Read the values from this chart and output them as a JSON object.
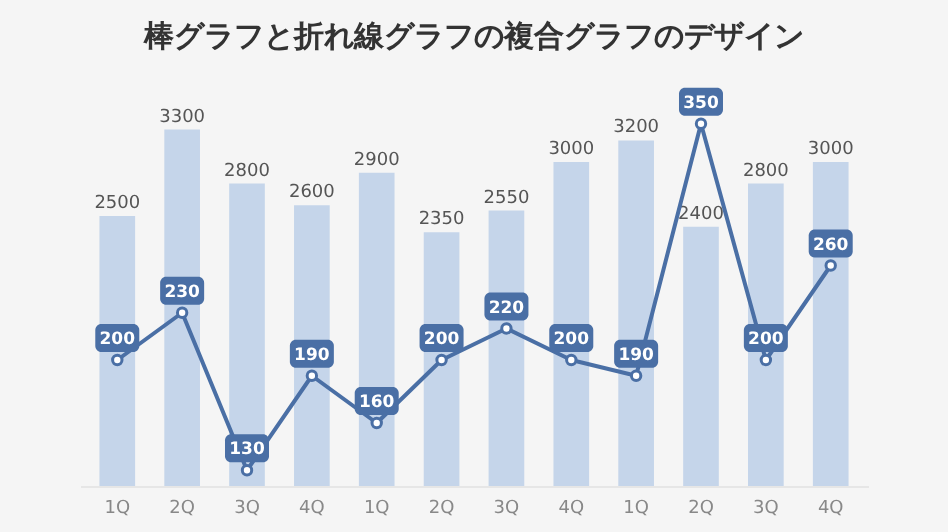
{
  "chart_data": {
    "type": "bar",
    "title": "棒グラフと折れ線グラフの複合グラフのデザイン",
    "categories": [
      "1Q",
      "2Q",
      "3Q",
      "4Q",
      "1Q",
      "2Q",
      "3Q",
      "4Q",
      "1Q",
      "2Q",
      "3Q",
      "4Q"
    ],
    "series": [
      {
        "color": "#c5d5ea",
        "values": [
          2500,
          3300,
          2800,
          2600,
          2900,
          2350,
          2550,
          3000,
          3200,
          2400,
          2800,
          3000
        ]
      },
      {
        "type": "line",
        "axis": "y2",
        "color": "#4a6fa5",
        "marker": "circle",
        "values": [
          200,
          230,
          130,
          190,
          160,
          200,
          220,
          200,
          190,
          350,
          200,
          260
        ]
      }
    ],
    "data_labels": true,
    "grid": false,
    "tick_labels": "x"
  }
}
